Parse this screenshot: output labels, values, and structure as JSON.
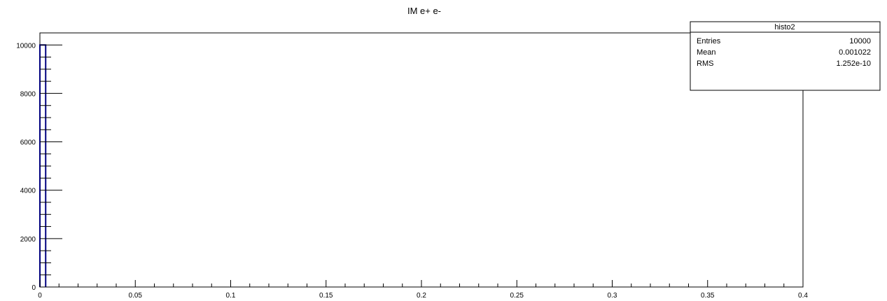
{
  "chart_data": {
    "type": "bar",
    "title": "IM e+ e-",
    "xlabel": "",
    "ylabel": "",
    "xlim": [
      0,
      0.4
    ],
    "ylim": [
      0,
      10500
    ],
    "x_ticks": [
      0,
      0.05,
      0.1,
      0.15,
      0.2,
      0.25,
      0.3,
      0.35,
      0.4
    ],
    "x_tick_labels": [
      "0",
      "0.05",
      "0.1",
      "0.15",
      "0.2",
      "0.25",
      "0.3",
      "0.35",
      "0.4"
    ],
    "y_ticks": [
      0,
      2000,
      4000,
      6000,
      8000,
      10000
    ],
    "y_tick_labels": [
      "0",
      "2000",
      "4000",
      "6000",
      "8000",
      "10000"
    ],
    "grid": false,
    "bin_width": 0.004,
    "series": [
      {
        "x": [
          0.001022
        ],
        "values": [
          10000
        ],
        "color": "#000080"
      }
    ],
    "stats_box": {
      "position": "top-right",
      "name": "histo2",
      "rows": [
        {
          "label": "Entries",
          "value": "10000"
        },
        {
          "label": "Mean",
          "value": "0.001022"
        },
        {
          "label": "RMS",
          "value": "1.252e-10"
        }
      ]
    }
  }
}
